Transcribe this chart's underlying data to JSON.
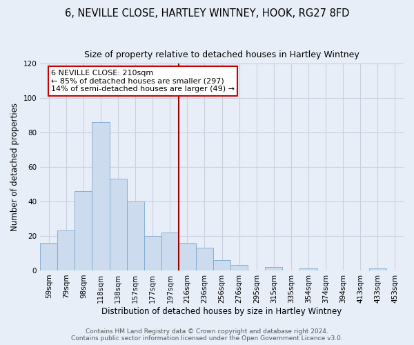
{
  "title": "6, NEVILLE CLOSE, HARTLEY WINTNEY, HOOK, RG27 8FD",
  "subtitle": "Size of property relative to detached houses in Hartley Wintney",
  "xlabel": "Distribution of detached houses by size in Hartley Wintney",
  "ylabel": "Number of detached properties",
  "categories": [
    "59sqm",
    "79sqm",
    "98sqm",
    "118sqm",
    "138sqm",
    "157sqm",
    "177sqm",
    "197sqm",
    "216sqm",
    "236sqm",
    "256sqm",
    "276sqm",
    "295sqm",
    "315sqm",
    "335sqm",
    "354sqm",
    "374sqm",
    "394sqm",
    "413sqm",
    "433sqm",
    "453sqm"
  ],
  "values": [
    16,
    23,
    46,
    86,
    53,
    40,
    20,
    22,
    16,
    13,
    6,
    3,
    0,
    2,
    0,
    1,
    0,
    0,
    0,
    1,
    0
  ],
  "bar_color": "#ccdcee",
  "bar_edge_color": "#7ba8cc",
  "vline_x_idx": 8,
  "vline_color": "#990000",
  "annotation_text": "6 NEVILLE CLOSE: 210sqm\n← 85% of detached houses are smaller (297)\n14% of semi-detached houses are larger (49) →",
  "annotation_box_color": "#ffffff",
  "annotation_box_edge_color": "#cc0000",
  "ylim": [
    0,
    120
  ],
  "yticks": [
    0,
    20,
    40,
    60,
    80,
    100,
    120
  ],
  "footer_line1": "Contains HM Land Registry data © Crown copyright and database right 2024.",
  "footer_line2": "Contains public sector information licensed under the Open Government Licence v3.0.",
  "bg_color": "#e8eef8",
  "plot_bg_color": "#e8eef8",
  "grid_color": "#c8d0e0",
  "title_fontsize": 10.5,
  "subtitle_fontsize": 9,
  "axis_label_fontsize": 8.5,
  "tick_fontsize": 7.5,
  "annotation_fontsize": 8,
  "footer_fontsize": 6.5
}
